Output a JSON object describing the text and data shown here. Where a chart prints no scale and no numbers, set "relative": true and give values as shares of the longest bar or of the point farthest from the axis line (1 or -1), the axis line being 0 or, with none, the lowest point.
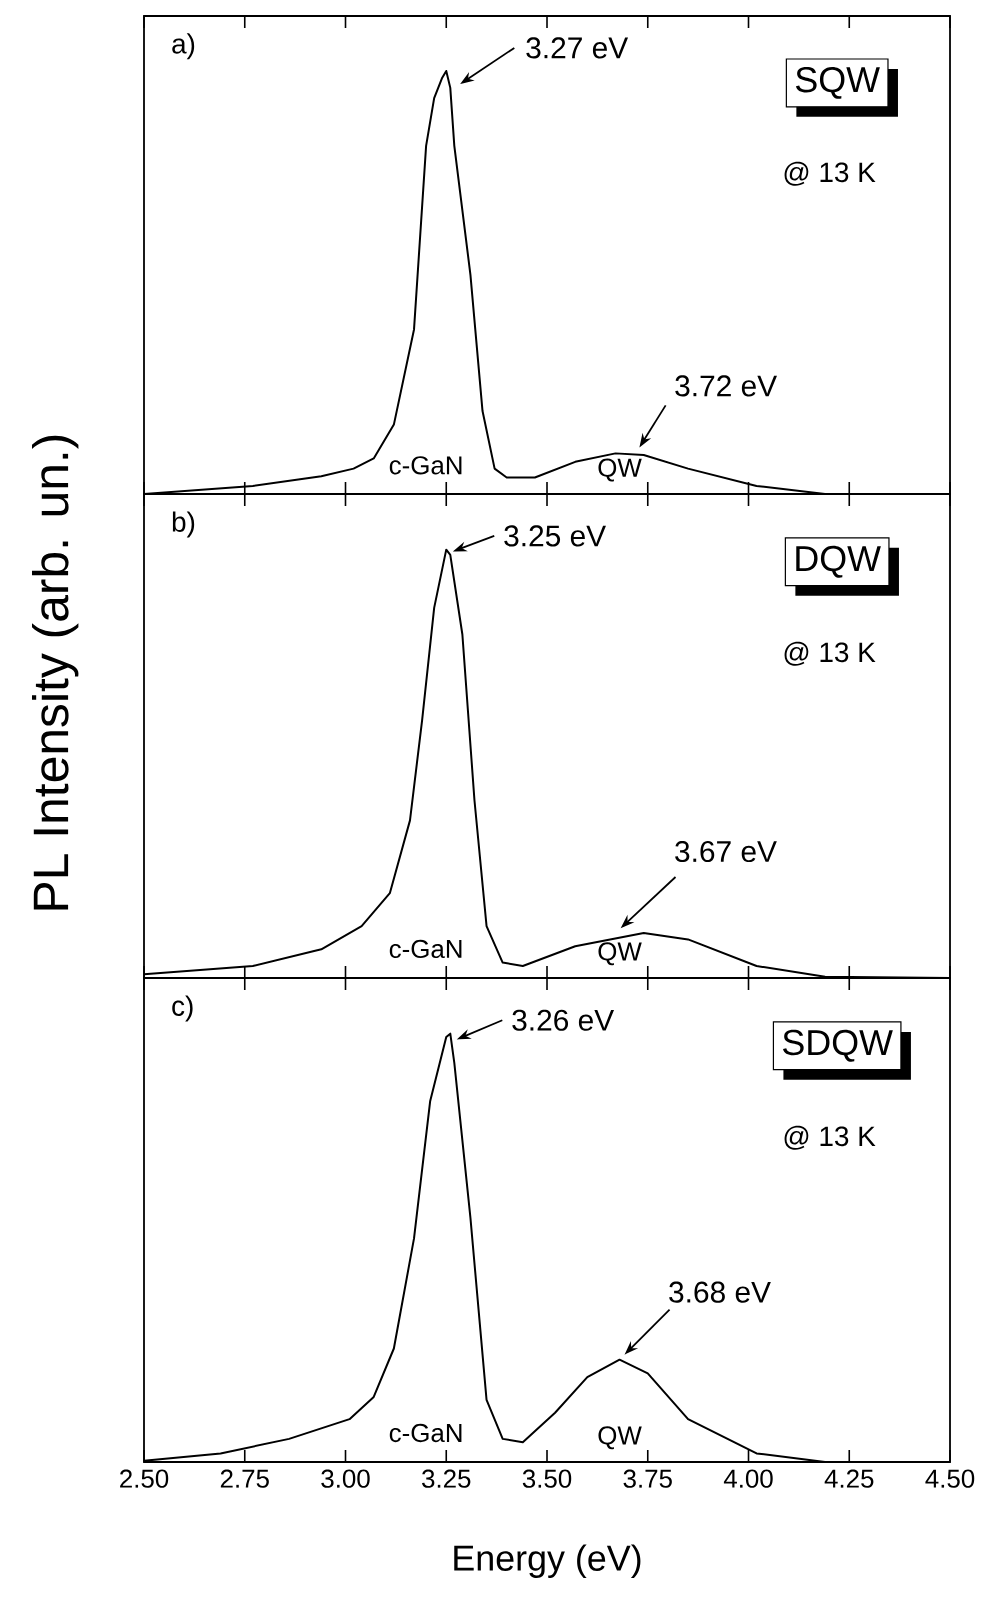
{
  "chart_data": [
    {
      "type": "line",
      "relative": true,
      "tick_labels": false,
      "xlim": [
        2.5,
        4.5
      ],
      "xticks": [
        2.5,
        2.75,
        3.0,
        3.25,
        3.5,
        3.75,
        4.0,
        4.25,
        4.5
      ],
      "annotations": [
        "a)",
        "SQW",
        "@ 13 K",
        "c-GaN",
        "QW",
        {
          "text": "3.27 eV",
          "x": 3.27,
          "y": 0.96
        },
        {
          "text": "3.72 eV",
          "x": 3.72,
          "y": 0.096
        }
      ],
      "series": [
        {
          "color": "#000000",
          "x": [
            2.5,
            2.77,
            2.94,
            3.02,
            3.07,
            3.12,
            3.17,
            3.2,
            3.22,
            3.24,
            3.25,
            3.26,
            3.27,
            3.31,
            3.34,
            3.37,
            3.4,
            3.47,
            3.57,
            3.67,
            3.74,
            3.85,
            4.02,
            4.19,
            4.5
          ],
          "values": [
            0,
            0.019,
            0.042,
            0.06,
            0.084,
            0.164,
            0.389,
            0.823,
            0.936,
            0.984,
            1.0,
            0.96,
            0.823,
            0.518,
            0.196,
            0.06,
            0.039,
            0.039,
            0.076,
            0.096,
            0.092,
            0.06,
            0.019,
            0,
            0
          ]
        }
      ]
    },
    {
      "type": "line",
      "relative": true,
      "tick_labels": false,
      "ylabel": "PL Intensity (arb. un.)",
      "xlim": [
        2.5,
        4.5
      ],
      "xticks": [
        2.5,
        2.75,
        3.0,
        3.25,
        3.5,
        3.75,
        4.0,
        4.25,
        4.5
      ],
      "annotations": [
        "b)",
        "DQW",
        "@ 13 K",
        "c-GaN",
        "QW",
        {
          "text": "3.25 eV",
          "x": 3.25,
          "y": 0.99
        },
        {
          "text": "3.67 eV",
          "x": 3.67,
          "y": 0.105
        }
      ],
      "series": [
        {
          "color": "#000000",
          "x": [
            2.5,
            2.77,
            2.94,
            3.04,
            3.11,
            3.16,
            3.19,
            3.22,
            3.25,
            3.26,
            3.29,
            3.32,
            3.35,
            3.39,
            3.44,
            3.57,
            3.74,
            3.85,
            4.02,
            4.19,
            4.5
          ],
          "values": [
            0.009,
            0.028,
            0.067,
            0.121,
            0.198,
            0.368,
            0.601,
            0.864,
            1.0,
            0.988,
            0.802,
            0.415,
            0.121,
            0.036,
            0.028,
            0.074,
            0.105,
            0.09,
            0.028,
            0.003,
            0
          ]
        }
      ]
    },
    {
      "type": "line",
      "relative": true,
      "tick_labels": "x",
      "xlabel": "Energy (eV)",
      "xlim": [
        2.5,
        4.5
      ],
      "xticks": [
        {
          "value": 2.5,
          "label": "2.50"
        },
        {
          "value": 2.75,
          "label": "2.75"
        },
        {
          "value": 3.0,
          "label": "3.00"
        },
        {
          "value": 3.25,
          "label": "3.25"
        },
        {
          "value": 3.5,
          "label": "3.50"
        },
        {
          "value": 3.75,
          "label": "3.75"
        },
        {
          "value": 4.0,
          "label": "4.00"
        },
        {
          "value": 4.25,
          "label": "4.25"
        },
        {
          "value": 4.5,
          "label": "4.50"
        }
      ],
      "annotations": [
        "c)",
        "SDQW",
        "@ 13 K",
        "c-GaN",
        "QW",
        {
          "text": "3.26 eV",
          "x": 3.26,
          "y": 0.98
        },
        {
          "text": "3.68 eV",
          "x": 3.68,
          "y": 0.239
        }
      ],
      "series": [
        {
          "color": "#000000",
          "x": [
            2.5,
            2.69,
            2.86,
            3.01,
            3.07,
            3.12,
            3.17,
            3.21,
            3.25,
            3.26,
            3.27,
            3.31,
            3.35,
            3.39,
            3.44,
            3.52,
            3.6,
            3.68,
            3.75,
            3.85,
            4.02,
            4.19,
            4.5
          ],
          "values": [
            0.003,
            0.02,
            0.054,
            0.1,
            0.152,
            0.265,
            0.522,
            0.842,
            0.992,
            1.0,
            0.932,
            0.57,
            0.145,
            0.054,
            0.046,
            0.115,
            0.198,
            0.239,
            0.207,
            0.1,
            0.02,
            0,
            0
          ]
        }
      ]
    }
  ]
}
